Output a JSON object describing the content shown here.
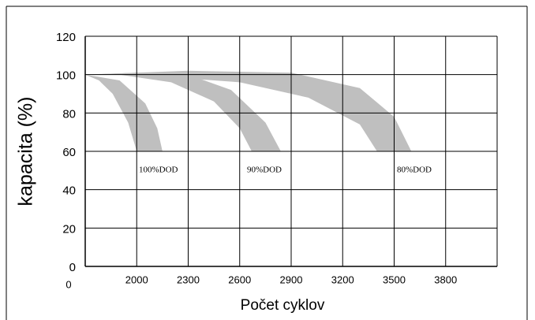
{
  "chart_data": {
    "type": "area",
    "xlabel": "Počet cyklov",
    "ylabel": "kapacita (%)",
    "xlim": [
      1700,
      4100
    ],
    "ylim": [
      0,
      120
    ],
    "xticks": [
      {
        "value": 1700,
        "label": "0"
      },
      2000,
      2300,
      2600,
      2900,
      3200,
      3500,
      3800
    ],
    "yticks": [
      0,
      20,
      40,
      60,
      80,
      100,
      120
    ],
    "grid": true,
    "series": [
      {
        "name": "100%DOD",
        "color": "#bfbfbf",
        "x": [
          1700,
          1900,
          2050,
          2120,
          2150,
          2000,
          1950,
          1860,
          1780,
          1700
        ],
        "y": [
          100,
          97,
          85,
          72,
          60,
          60,
          75,
          90,
          97,
          100
        ]
      },
      {
        "name": "90%DOD",
        "color": "#bfbfbf",
        "x": [
          1700,
          2000,
          2300,
          2550,
          2750,
          2840,
          2670,
          2600,
          2450,
          2200,
          1900,
          1700
        ],
        "y": [
          100,
          101,
          100,
          92,
          75,
          60,
          60,
          72,
          86,
          96,
          100,
          100
        ]
      },
      {
        "name": "80%DOD",
        "color": "#bfbfbf",
        "x": [
          1700,
          2300,
          2900,
          3300,
          3500,
          3600,
          3400,
          3300,
          3000,
          2600,
          2000,
          1700
        ],
        "y": [
          100,
          102,
          101,
          93,
          78,
          60,
          60,
          74,
          88,
          96,
          100,
          100
        ]
      }
    ]
  }
}
